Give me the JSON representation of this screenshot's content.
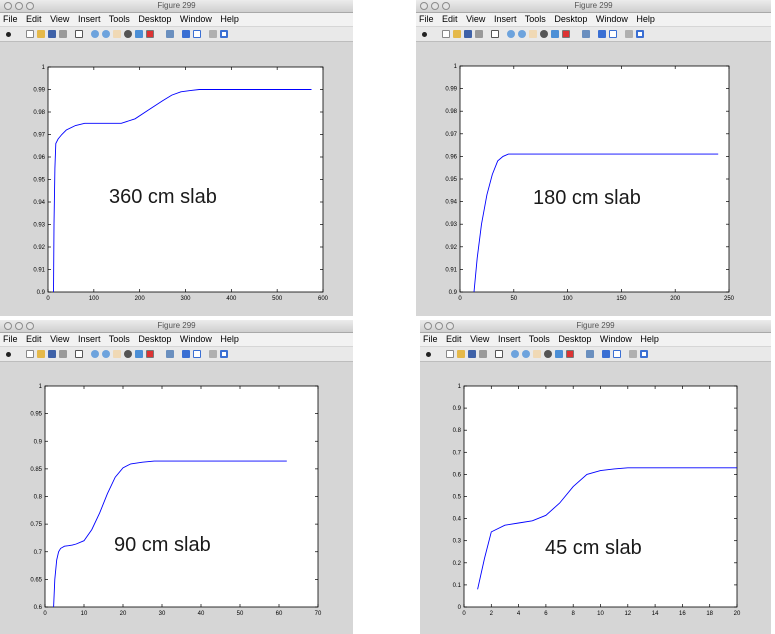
{
  "windows": [
    {
      "title": "Figure 299",
      "menu": [
        "File",
        "Edit",
        "View",
        "Insert",
        "Tools",
        "Desktop",
        "Window",
        "Help"
      ],
      "annotation": "360 cm slab",
      "chart_data": {
        "type": "line",
        "xlim": [
          0,
          600
        ],
        "ylim": [
          0.9,
          1.0
        ],
        "xticks": [
          0,
          100,
          200,
          300,
          400,
          500,
          600
        ],
        "yticks": [
          0.9,
          0.91,
          0.92,
          0.93,
          0.94,
          0.95,
          0.96,
          0.97,
          0.98,
          0.99,
          1
        ],
        "series": [
          {
            "color": "#0000ff",
            "x": [
              12,
              13,
              15,
              17,
              22,
              30,
              40,
              60,
              80,
              100,
              130,
              160,
              190,
              220,
              250,
              270,
              290,
              310,
              330,
              360,
              400,
              450,
              500,
              575
            ],
            "y": [
              0.9,
              0.93,
              0.955,
              0.966,
              0.968,
              0.97,
              0.972,
              0.974,
              0.975,
              0.975,
              0.975,
              0.975,
              0.977,
              0.981,
              0.985,
              0.9875,
              0.989,
              0.9895,
              0.99,
              0.99,
              0.99,
              0.99,
              0.99,
              0.99
            ]
          }
        ]
      }
    },
    {
      "title": "Figure 299",
      "menu": [
        "File",
        "Edit",
        "View",
        "Insert",
        "Tools",
        "Desktop",
        "Window",
        "Help"
      ],
      "annotation": "180 cm slab",
      "chart_data": {
        "type": "line",
        "xlim": [
          0,
          250
        ],
        "ylim": [
          0.9,
          1.0
        ],
        "xticks": [
          0,
          50,
          100,
          150,
          200,
          250
        ],
        "yticks": [
          0.9,
          0.91,
          0.92,
          0.93,
          0.94,
          0.95,
          0.96,
          0.97,
          0.98,
          0.99,
          1
        ],
        "series": [
          {
            "color": "#0000ff",
            "x": [
              13,
              16,
              20,
              25,
              30,
              35,
              40,
              45,
              50,
              60,
              80,
              120,
              160,
              200,
              240
            ],
            "y": [
              0.9,
              0.915,
              0.93,
              0.943,
              0.952,
              0.958,
              0.96,
              0.961,
              0.961,
              0.961,
              0.961,
              0.961,
              0.961,
              0.961,
              0.961
            ]
          }
        ]
      }
    },
    {
      "title": "Figure 299",
      "menu": [
        "File",
        "Edit",
        "View",
        "Insert",
        "Tools",
        "Desktop",
        "Window",
        "Help"
      ],
      "annotation": "90 cm slab",
      "chart_data": {
        "type": "line",
        "xlim": [
          0,
          70
        ],
        "ylim": [
          0.6,
          1.0
        ],
        "xticks": [
          0,
          10,
          20,
          30,
          40,
          50,
          60,
          70
        ],
        "yticks": [
          0.6,
          0.65,
          0.7,
          0.75,
          0.8,
          0.85,
          0.9,
          0.95,
          1
        ],
        "series": [
          {
            "color": "#0000ff",
            "x": [
              2.2,
              2.5,
              3,
              3.5,
              4,
              5,
              6,
              7,
              8,
              10,
              12,
              14,
              16,
              18,
              20,
              22,
              25,
              28,
              32,
              36,
              40,
              50,
              62
            ],
            "y": [
              0.6,
              0.65,
              0.685,
              0.7,
              0.706,
              0.71,
              0.711,
              0.712,
              0.714,
              0.72,
              0.74,
              0.77,
              0.805,
              0.835,
              0.852,
              0.859,
              0.862,
              0.864,
              0.864,
              0.864,
              0.864,
              0.864,
              0.864
            ]
          }
        ]
      }
    },
    {
      "title": "Figure 299",
      "menu": [
        "File",
        "Edit",
        "View",
        "Insert",
        "Tools",
        "Desktop",
        "Window",
        "Help"
      ],
      "annotation": "45 cm slab",
      "chart_data": {
        "type": "line",
        "xlim": [
          0,
          20
        ],
        "ylim": [
          0,
          1
        ],
        "xticks": [
          0,
          2,
          4,
          6,
          8,
          10,
          12,
          14,
          16,
          18,
          20
        ],
        "yticks": [
          0,
          0.1,
          0.2,
          0.3,
          0.4,
          0.5,
          0.6,
          0.7,
          0.8,
          0.9,
          1
        ],
        "series": [
          {
            "color": "#0000ff",
            "x": [
              1,
              1.5,
              2,
              3,
              4,
              5,
              6,
              7,
              8,
              9,
              10,
              11,
              12,
              13,
              14,
              16,
              18,
              20
            ],
            "y": [
              0.08,
              0.22,
              0.34,
              0.37,
              0.38,
              0.39,
              0.415,
              0.47,
              0.545,
              0.6,
              0.617,
              0.625,
              0.63,
              0.63,
              0.63,
              0.63,
              0.63,
              0.63
            ]
          }
        ]
      }
    }
  ]
}
